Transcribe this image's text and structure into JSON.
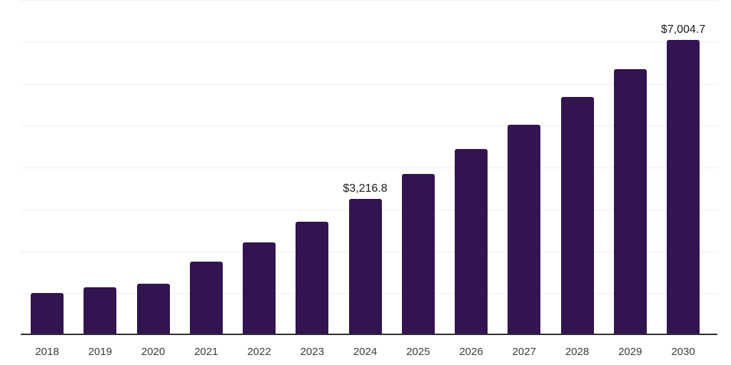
{
  "chart_data": {
    "type": "bar",
    "title": "",
    "xlabel": "",
    "ylabel": "",
    "categories": [
      "2018",
      "2019",
      "2020",
      "2021",
      "2022",
      "2023",
      "2024",
      "2025",
      "2026",
      "2027",
      "2028",
      "2029",
      "2030"
    ],
    "values": [
      975,
      1100,
      1195,
      1715,
      2185,
      2675,
      3216.8,
      3810,
      4405,
      4990,
      5655,
      6315,
      7004.7
    ],
    "annotations": [
      {
        "category": "2024",
        "text": "$3,216.8"
      },
      {
        "category": "2030",
        "text": "$7,004.7"
      }
    ],
    "ylim": [
      0,
      8000
    ],
    "gridline_interval": 1000,
    "grid": true,
    "legend_position": "none",
    "bar_color": "#321450"
  },
  "colors": {
    "background": "#ffffff",
    "bar": "#321450",
    "axis_line": "#2e2e2e",
    "gridline": "#efefef",
    "tick_label": "#3c3c3c",
    "value_label": "#1b1b1b"
  }
}
